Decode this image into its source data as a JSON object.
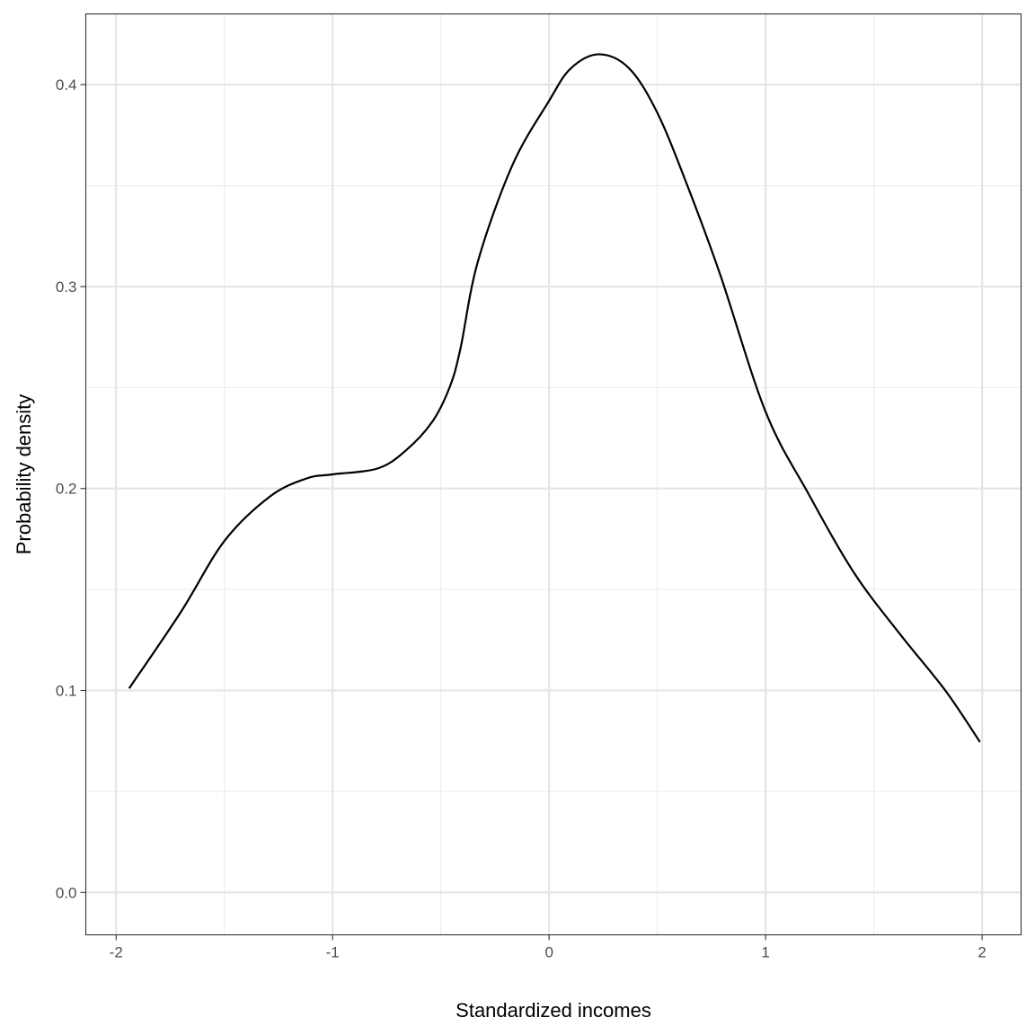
{
  "chart_data": {
    "type": "line",
    "title": "",
    "xlabel": "Standardized incomes",
    "ylabel": "Probability density",
    "xlim": [
      -2.14,
      2.18
    ],
    "ylim": [
      -0.021,
      0.435
    ],
    "x_ticks": [
      -2,
      -1,
      0,
      1,
      2
    ],
    "x_tick_labels": [
      "-2",
      "-1",
      "0",
      "1",
      "2"
    ],
    "y_ticks": [
      0.0,
      0.1,
      0.2,
      0.3,
      0.4
    ],
    "y_tick_labels": [
      "0.0",
      "0.1",
      "0.2",
      "0.3",
      "0.4"
    ],
    "grid": true,
    "line_color": "#000000",
    "series": [
      {
        "x": [
          -1.94,
          -1.7,
          -1.5,
          -1.29,
          -1.12,
          -1.0,
          -0.79,
          -0.66,
          -0.54,
          -0.46,
          -0.41,
          -0.33,
          -0.17,
          0.0,
          0.1,
          0.23,
          0.37,
          0.5,
          0.635,
          0.79,
          1.0,
          1.2,
          1.41,
          1.62,
          1.83,
          1.99
        ],
        "y": [
          0.101,
          0.139,
          0.174,
          0.196,
          0.205,
          0.207,
          0.21,
          0.219,
          0.233,
          0.25,
          0.269,
          0.312,
          0.36,
          0.392,
          0.408,
          0.415,
          0.408,
          0.386,
          0.351,
          0.306,
          0.238,
          0.197,
          0.158,
          0.128,
          0.1,
          0.0745
        ]
      }
    ]
  }
}
